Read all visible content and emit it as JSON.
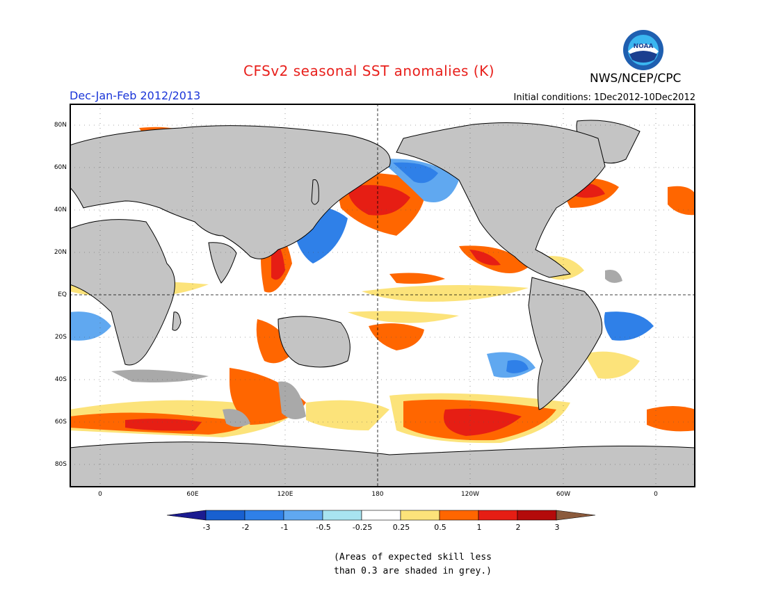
{
  "title": "CFSv2 seasonal SST anomalies (K)",
  "agency": "NWS/NCEP/CPC",
  "logo_text": "NOAA",
  "season": "Dec-Jan-Feb 2012/2013",
  "initial_conditions": "Initial conditions: 1Dec2012-10Dec2012",
  "lat_labels": [
    "80N",
    "60N",
    "40N",
    "20N",
    "EQ",
    "20S",
    "40S",
    "60S",
    "80S"
  ],
  "lon_labels": [
    "0",
    "60E",
    "120E",
    "180",
    "120W",
    "60W",
    "0"
  ],
  "colorbar": {
    "labels": [
      "-3",
      "-2",
      "-1",
      "-0.5",
      "-0.25",
      "0.25",
      "0.5",
      "1",
      "2",
      "3"
    ],
    "colors": [
      "#1b1b90",
      "#1860d0",
      "#2f80e8",
      "#60a8f0",
      "#a8e4f0",
      "#ffffff",
      "#fce37a",
      "#ff6600",
      "#e61e14",
      "#b40a0a",
      "#8b5a3c"
    ]
  },
  "note_line1": "(Areas of expected skill less",
  "note_line2": "than 0.3 are shaded in grey.)",
  "colors": {
    "land": "#c4c4c4",
    "no_skill": "#a9a9a9",
    "title": "#e8201c",
    "season": "#1a35d8"
  }
}
